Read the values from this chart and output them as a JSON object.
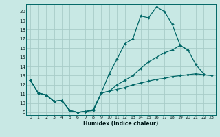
{
  "xlabel": "Humidex (Indice chaleur)",
  "bg_color": "#c8e8e4",
  "grid_color": "#a8ccc8",
  "line_color": "#006666",
  "xlim": [
    -0.5,
    23.5
  ],
  "ylim": [
    8.7,
    20.8
  ],
  "xticks": [
    0,
    1,
    2,
    3,
    4,
    5,
    6,
    7,
    8,
    9,
    10,
    11,
    12,
    13,
    14,
    15,
    16,
    17,
    18,
    19,
    20,
    21,
    22,
    23
  ],
  "yticks": [
    9,
    10,
    11,
    12,
    13,
    14,
    15,
    16,
    17,
    18,
    19,
    20
  ],
  "line1_x": [
    0,
    1,
    2,
    3,
    4,
    5,
    6,
    7,
    8,
    9,
    10,
    11,
    12,
    13,
    14,
    15,
    16,
    17,
    18,
    19,
    20
  ],
  "line1_y": [
    12.5,
    11.1,
    10.9,
    10.2,
    10.3,
    9.2,
    9.0,
    9.1,
    9.2,
    11.1,
    13.2,
    14.8,
    16.5,
    17.0,
    19.5,
    19.3,
    20.5,
    20.0,
    18.6,
    16.3,
    15.8
  ],
  "line2_x": [
    0,
    1,
    2,
    3,
    4,
    5,
    6,
    7,
    8,
    9,
    10,
    11,
    12,
    13,
    14,
    15,
    16,
    17,
    18,
    19,
    20,
    21,
    22
  ],
  "line2_y": [
    12.5,
    11.1,
    10.9,
    10.2,
    10.3,
    9.2,
    9.0,
    9.1,
    9.3,
    11.1,
    11.3,
    12.0,
    12.5,
    13.0,
    13.8,
    14.5,
    15.0,
    15.5,
    15.8,
    16.3,
    15.8,
    14.2,
    13.2
  ],
  "line3_x": [
    0,
    1,
    2,
    3,
    4,
    5,
    6,
    7,
    8,
    9,
    10,
    11,
    12,
    13,
    14,
    15,
    16,
    17,
    18,
    19,
    20,
    21,
    22,
    23
  ],
  "line3_y": [
    12.5,
    11.1,
    10.9,
    10.2,
    10.3,
    9.2,
    9.0,
    9.1,
    9.3,
    11.1,
    11.3,
    11.5,
    11.7,
    12.0,
    12.2,
    12.4,
    12.6,
    12.7,
    12.9,
    13.0,
    13.1,
    13.2,
    13.1,
    13.0
  ]
}
